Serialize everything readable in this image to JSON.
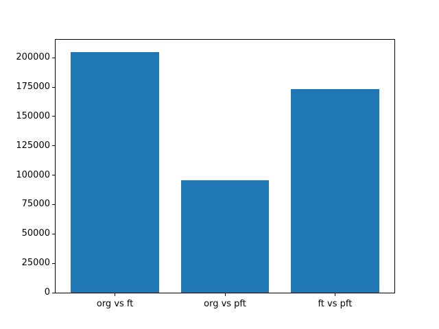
{
  "chart_data": {
    "type": "bar",
    "title": "",
    "xlabel": "",
    "ylabel": "",
    "categories": [
      "org vs ft",
      "org vs pft",
      "ft vs pft"
    ],
    "values": [
      205000,
      95500,
      173000
    ],
    "yticks": [
      0,
      25000,
      50000,
      75000,
      100000,
      125000,
      150000,
      175000,
      200000
    ],
    "ytick_labels": [
      "0",
      "25000",
      "50000",
      "75000",
      "100000",
      "125000",
      "150000",
      "175000",
      "200000"
    ],
    "ylim": [
      0,
      215250
    ],
    "xlim": [
      -0.54,
      2.54
    ],
    "bar_positions": [
      0,
      1,
      2
    ],
    "bar_width": 0.8,
    "bar_color": "#1f77b4",
    "spine_color": "#000000",
    "background_color": "#ffffff",
    "grid": false,
    "legend": null
  }
}
